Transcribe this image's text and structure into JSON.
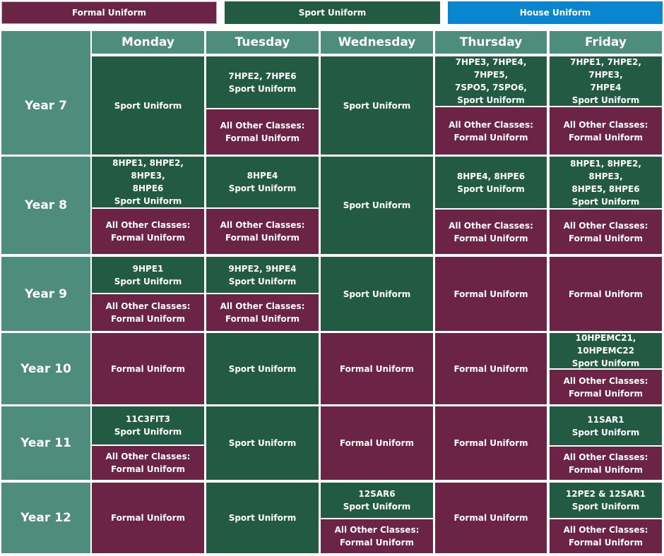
{
  "legend": {
    "formal": "Formal Uniform",
    "sport": "Sport Uniform",
    "house": "House Uniform"
  },
  "colors": {
    "formal": "#6b2346",
    "sport": "#225a44",
    "house": "#0a86cf",
    "header": "#4e8c7c"
  },
  "days": [
    "Monday",
    "Tuesday",
    "Wednesday",
    "Thursday",
    "Friday"
  ],
  "years": [
    "Year 7",
    "Year 8",
    "Year 9",
    "Year 10",
    "Year 11",
    "Year 12"
  ],
  "cells": {
    "y7": {
      "mon": [
        "Sport Uniform"
      ],
      "tue_a": [
        "7HPE2, 7HPE6",
        "Sport Uniform"
      ],
      "tue_b": [
        "All Other Classes:",
        "Formal  Uniform"
      ],
      "wed": [
        "Sport Uniform"
      ],
      "thu_a": [
        "7HPE3, 7HPE4, 7HPE5,",
        "7SPO5, 7SPO6,",
        "Sport Uniform"
      ],
      "thu_b": [
        "All Other Classes:",
        "Formal  Uniform"
      ],
      "fri_a": [
        "7HPE1, 7HPE2, 7HPE3,",
        "7HPE4",
        "Sport Uniform"
      ],
      "fri_b": [
        "All Other Classes:",
        "Formal  Uniform"
      ]
    },
    "y8": {
      "mon_a": [
        "8HPE1, 8HPE2, 8HPE3,",
        "8HPE6",
        "Sport Uniform"
      ],
      "mon_b": [
        "All Other Classes:",
        "Formal  Uniform"
      ],
      "tue_a": [
        "8HPE4",
        "Sport Uniform"
      ],
      "tue_b": [
        "All Other Classes:",
        "Formal  Uniform"
      ],
      "wed": [
        "Sport Uniform"
      ],
      "thu_a": [
        "8HPE4, 8HPE6",
        "Sport Uniform"
      ],
      "thu_b": [
        "All Other Classes:",
        "Formal  Uniform"
      ],
      "fri_a": [
        "8HPE1, 8HPE2, 8HPE3,",
        "8HPE5, 8HPE6",
        "Sport Uniform"
      ],
      "fri_b": [
        "All Other Classes:",
        "Formal  Uniform"
      ]
    },
    "y9": {
      "mon_a": [
        "9HPE1",
        "Sport Uniform"
      ],
      "mon_b": [
        "All Other Classes:",
        "Formal  Uniform"
      ],
      "tue_a": [
        "9HPE2, 9HPE4",
        "Sport Uniform"
      ],
      "tue_b": [
        "All Other Classes:",
        "Formal  Uniform"
      ],
      "wed": [
        "Sport Uniform"
      ],
      "thu": [
        "Formal  Uniform"
      ],
      "fri": [
        "Formal  Uniform"
      ]
    },
    "y10": {
      "mon": [
        "Formal Uniform"
      ],
      "tue": [
        "Sport Uniform"
      ],
      "wed": [
        "Formal Uniform"
      ],
      "thu": [
        "Formal Uniform"
      ],
      "fri_a": [
        "10HPEMC21, 10HPEMC22",
        "Sport Uniform"
      ],
      "fri_b": [
        "All Other Classes:",
        "Formal  Uniform"
      ]
    },
    "y11": {
      "mon_a": [
        "11C3FIT3",
        "Sport Uniform"
      ],
      "mon_b": [
        "All Other Classes:",
        "Formal  Uniform"
      ],
      "tue": [
        "Sport Uniform"
      ],
      "wed": [
        "Formal Uniform"
      ],
      "thu": [
        "Formal Uniform"
      ],
      "fri_a": [
        "11SAR1",
        "Sport Uniform"
      ],
      "fri_b": [
        "All Other Classes:",
        "Formal  Uniform"
      ]
    },
    "y12": {
      "mon": [
        "Formal Uniform"
      ],
      "tue": [
        "Sport Uniform"
      ],
      "wed_a": [
        "12SAR6",
        "Sport Uniform"
      ],
      "wed_b": [
        "All Other Classes:",
        "Formal Uniform"
      ],
      "thu": [
        "Formal Uniform"
      ],
      "fri_a": [
        "12PE2 & 12SAR1",
        "Sport Uniform"
      ],
      "fri_b": [
        "All Other Classes:",
        "Formal  Uniform"
      ]
    }
  }
}
